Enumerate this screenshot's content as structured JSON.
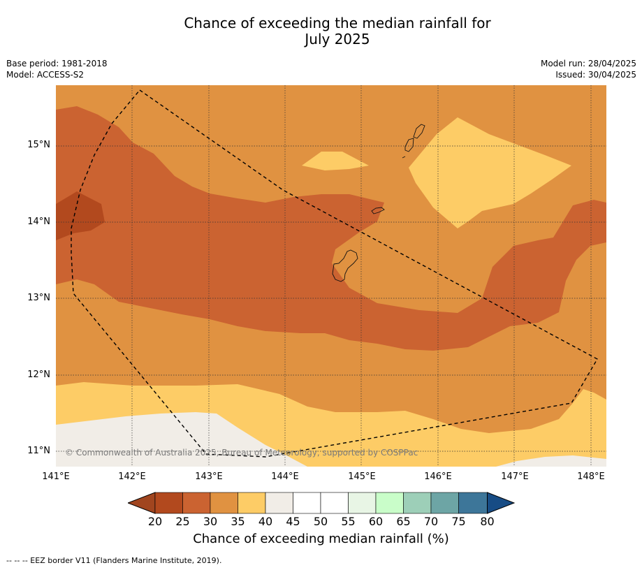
{
  "title_line1": "Chance of exceeding the median rainfall for",
  "title_line2": "July 2025",
  "meta": {
    "base_period": "Base period: 1981-2018",
    "model": "Model: ACCESS-S2",
    "model_run": "Model run: 28/04/2025",
    "issued": "Issued: 30/04/2025"
  },
  "map": {
    "lat_labels": [
      "15°N",
      "14°N",
      "13°N",
      "12°N",
      "11°N"
    ],
    "lon_labels": [
      "141°E",
      "142°E",
      "143°E",
      "144°E",
      "145°E",
      "146°E",
      "147°E",
      "148°E"
    ],
    "copyright": "© Commonwealth of Australia 2025, Bureau of Meteorology, supported by COSPPac",
    "colors": {
      "below_20": "#a1451f",
      "b20_25": "#b2491e",
      "b25_30": "#cb6331",
      "b30_35": "#e09241",
      "b35_40": "#fdcc66",
      "b40_45": "#f1ede7",
      "b45_55": "#ffffff",
      "b55_60": "#e8f5e5",
      "b60_65": "#c9fdc9",
      "b65_70": "#9dcfb8",
      "b70_75": "#6da5a5",
      "b75_80": "#3d7699",
      "above_80": "#174c85"
    }
  },
  "colorbar": {
    "ticks": [
      "20",
      "25",
      "30",
      "35",
      "40",
      "45",
      "50",
      "55",
      "60",
      "65",
      "70",
      "75",
      "80"
    ],
    "title": "Chance of exceeding median rainfall (%)"
  },
  "footer": "--  --  -- EEZ border V11 (Flanders Marine Institute, 2019)."
}
